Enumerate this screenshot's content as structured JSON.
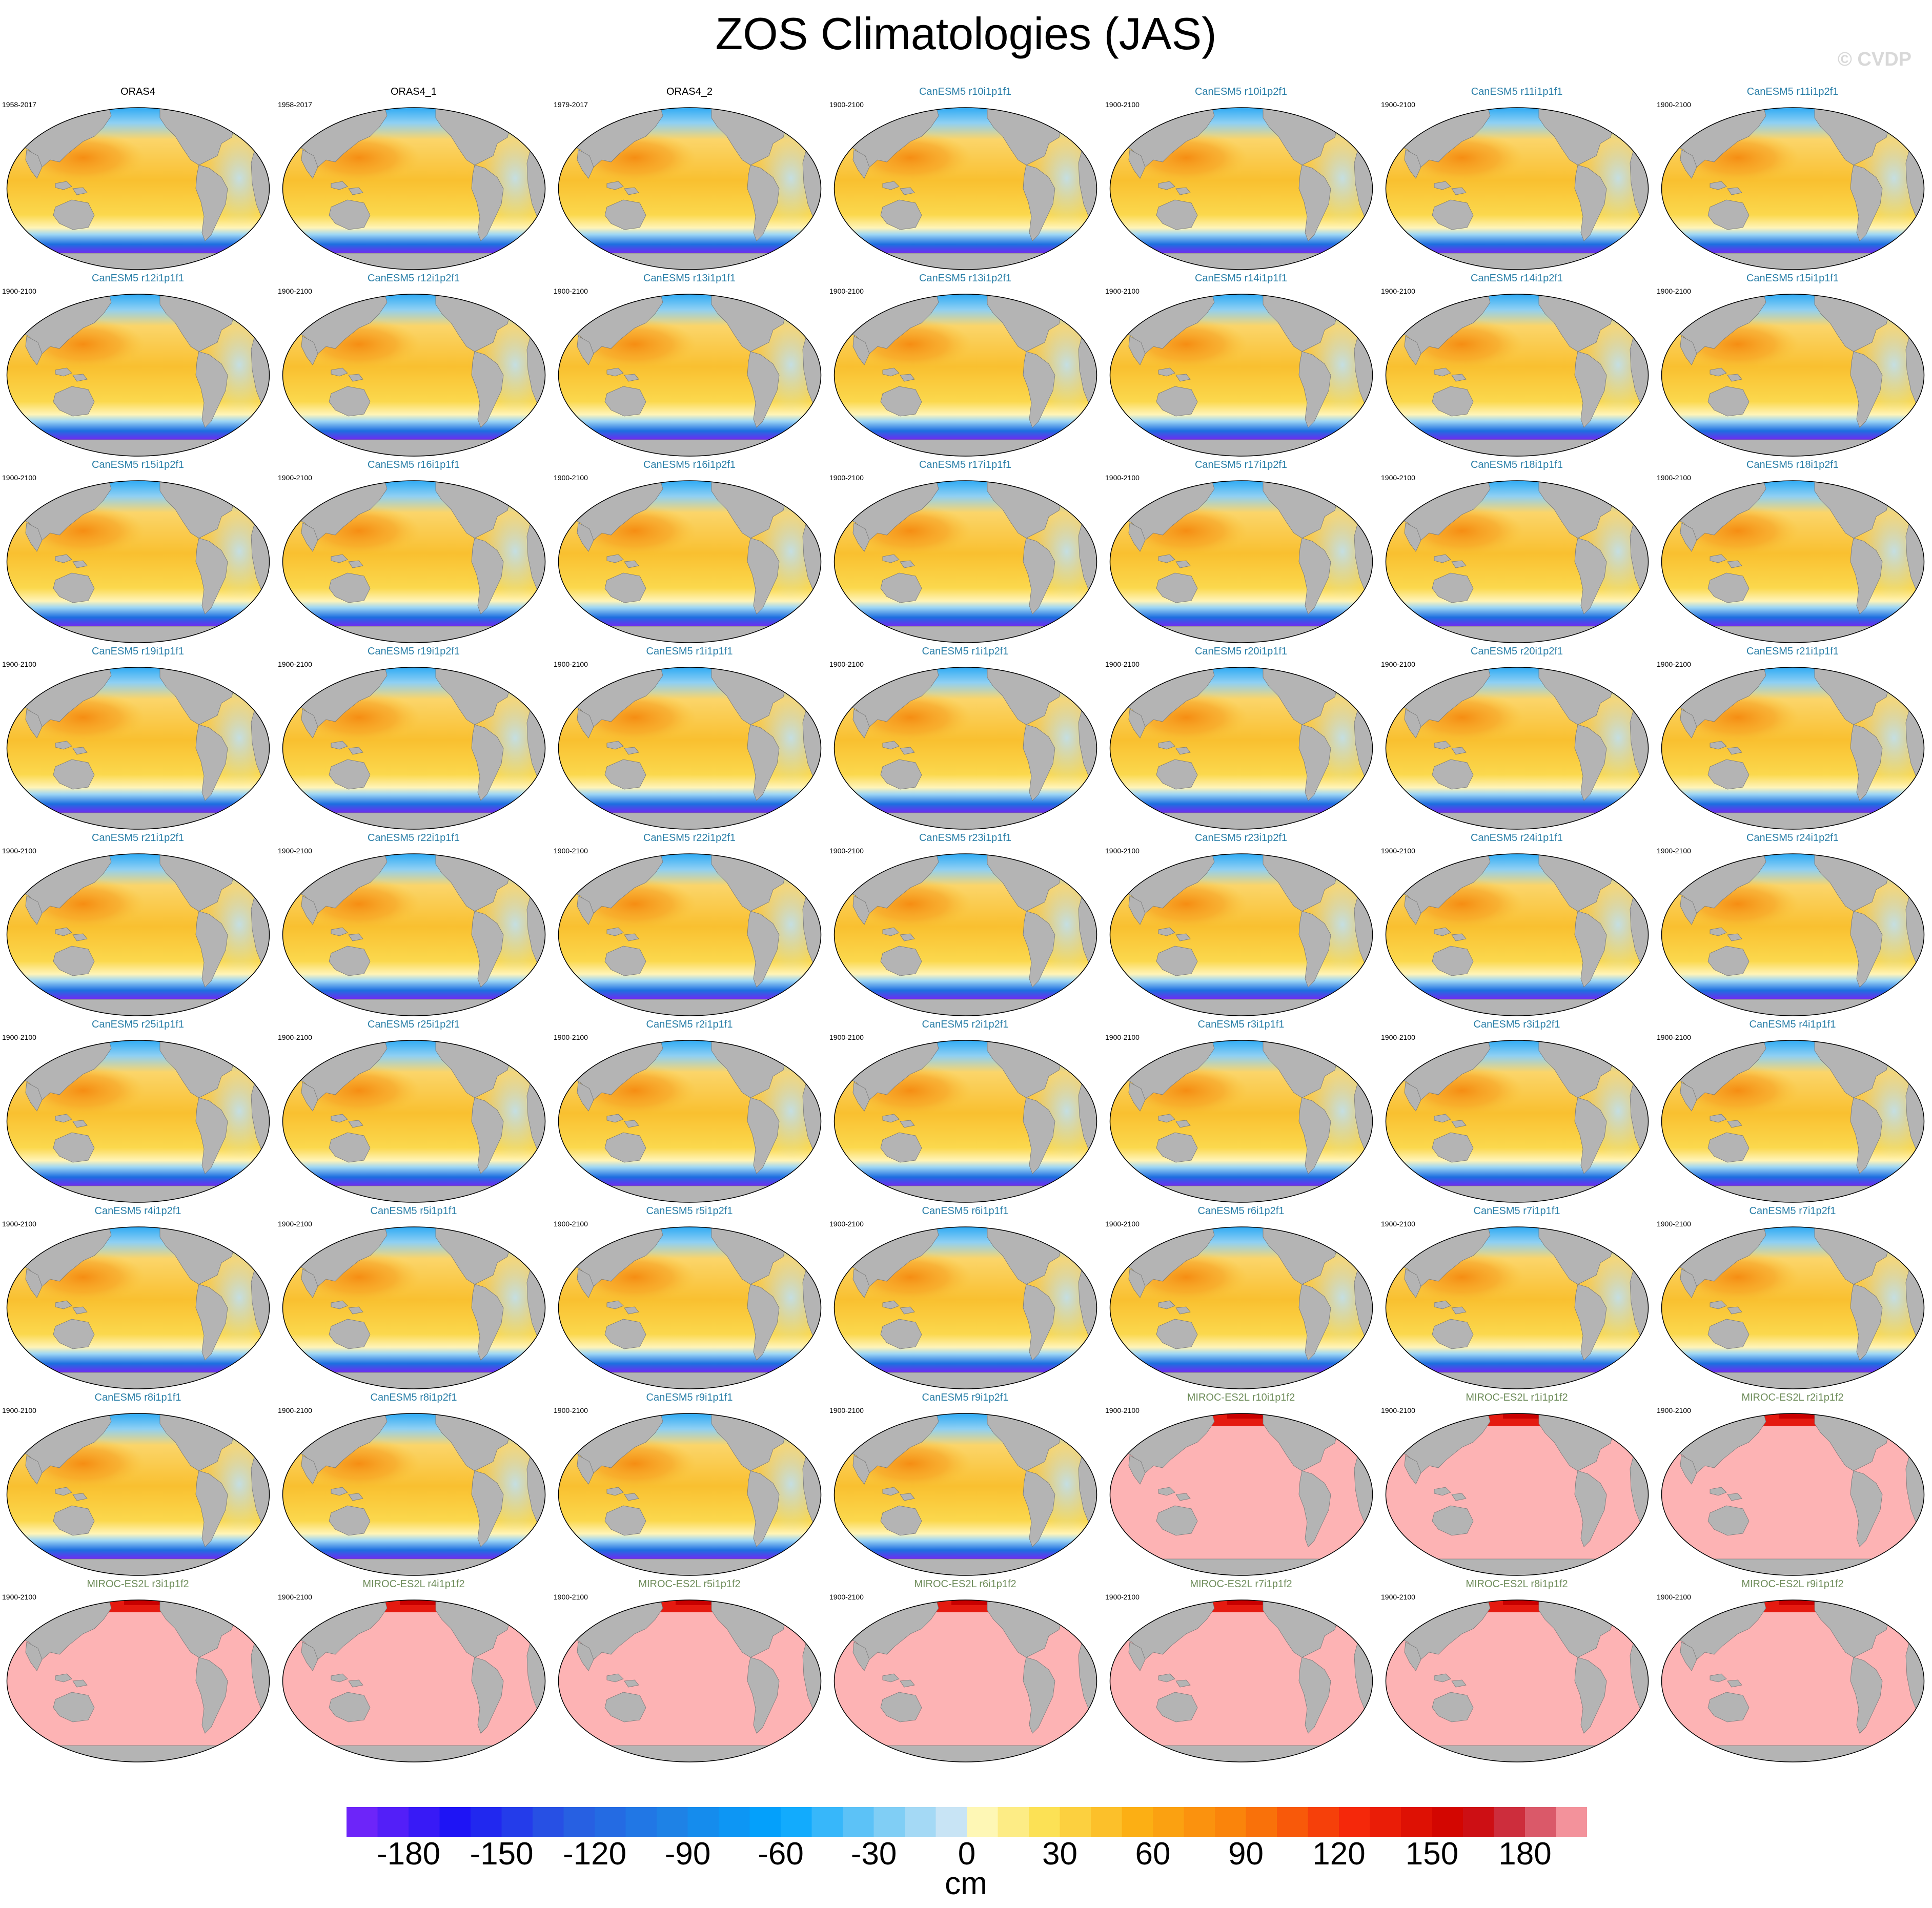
{
  "title": "ZOS Climatologies (JAS)",
  "copyright": "© CVDP",
  "chart_data": {
    "type": "heatmap",
    "title": "ZOS Climatologies (JAS)",
    "colorbar": {
      "units": "cm",
      "min": -200,
      "max": 200,
      "step": 10,
      "tick_labels": [
        "-180",
        "-150",
        "-120",
        "-90",
        "-60",
        "-30",
        "0",
        "30",
        "60",
        "90",
        "120",
        "150",
        "180"
      ],
      "tick_values": [
        -180,
        -150,
        -120,
        -90,
        -60,
        -30,
        0,
        30,
        60,
        90,
        120,
        150,
        180
      ]
    },
    "colors": {
      "land": "#b4b4b4",
      "canesm_title": "#2a7fa8",
      "miroc_title": "#6e8c5a",
      "obs_title": "#000000"
    },
    "panels": [
      {
        "title": "ORAS4",
        "years": "1958-2017",
        "kind": "obs"
      },
      {
        "title": "ORAS4_1",
        "years": "1958-2017",
        "kind": "obs"
      },
      {
        "title": "ORAS4_2",
        "years": "1979-2017",
        "kind": "obs"
      },
      {
        "title": "CanESM5 r10i1p1f1",
        "years": "1900-2100",
        "kind": "canesm"
      },
      {
        "title": "CanESM5 r10i1p2f1",
        "years": "1900-2100",
        "kind": "canesm"
      },
      {
        "title": "CanESM5 r11i1p1f1",
        "years": "1900-2100",
        "kind": "canesm"
      },
      {
        "title": "CanESM5 r11i1p2f1",
        "years": "1900-2100",
        "kind": "canesm"
      },
      {
        "title": "CanESM5 r12i1p1f1",
        "years": "1900-2100",
        "kind": "canesm"
      },
      {
        "title": "CanESM5 r12i1p2f1",
        "years": "1900-2100",
        "kind": "canesm"
      },
      {
        "title": "CanESM5 r13i1p1f1",
        "years": "1900-2100",
        "kind": "canesm"
      },
      {
        "title": "CanESM5 r13i1p2f1",
        "years": "1900-2100",
        "kind": "canesm"
      },
      {
        "title": "CanESM5 r14i1p1f1",
        "years": "1900-2100",
        "kind": "canesm"
      },
      {
        "title": "CanESM5 r14i1p2f1",
        "years": "1900-2100",
        "kind": "canesm"
      },
      {
        "title": "CanESM5 r15i1p1f1",
        "years": "1900-2100",
        "kind": "canesm"
      },
      {
        "title": "CanESM5 r15i1p2f1",
        "years": "1900-2100",
        "kind": "canesm"
      },
      {
        "title": "CanESM5 r16i1p1f1",
        "years": "1900-2100",
        "kind": "canesm"
      },
      {
        "title": "CanESM5 r16i1p2f1",
        "years": "1900-2100",
        "kind": "canesm"
      },
      {
        "title": "CanESM5 r17i1p1f1",
        "years": "1900-2100",
        "kind": "canesm"
      },
      {
        "title": "CanESM5 r17i1p2f1",
        "years": "1900-2100",
        "kind": "canesm"
      },
      {
        "title": "CanESM5 r18i1p1f1",
        "years": "1900-2100",
        "kind": "canesm"
      },
      {
        "title": "CanESM5 r18i1p2f1",
        "years": "1900-2100",
        "kind": "canesm"
      },
      {
        "title": "CanESM5 r19i1p1f1",
        "years": "1900-2100",
        "kind": "canesm"
      },
      {
        "title": "CanESM5 r19i1p2f1",
        "years": "1900-2100",
        "kind": "canesm"
      },
      {
        "title": "CanESM5 r1i1p1f1",
        "years": "1900-2100",
        "kind": "canesm"
      },
      {
        "title": "CanESM5 r1i1p2f1",
        "years": "1900-2100",
        "kind": "canesm"
      },
      {
        "title": "CanESM5 r20i1p1f1",
        "years": "1900-2100",
        "kind": "canesm"
      },
      {
        "title": "CanESM5 r20i1p2f1",
        "years": "1900-2100",
        "kind": "canesm"
      },
      {
        "title": "CanESM5 r21i1p1f1",
        "years": "1900-2100",
        "kind": "canesm"
      },
      {
        "title": "CanESM5 r21i1p2f1",
        "years": "1900-2100",
        "kind": "canesm"
      },
      {
        "title": "CanESM5 r22i1p1f1",
        "years": "1900-2100",
        "kind": "canesm"
      },
      {
        "title": "CanESM5 r22i1p2f1",
        "years": "1900-2100",
        "kind": "canesm"
      },
      {
        "title": "CanESM5 r23i1p1f1",
        "years": "1900-2100",
        "kind": "canesm"
      },
      {
        "title": "CanESM5 r23i1p2f1",
        "years": "1900-2100",
        "kind": "canesm"
      },
      {
        "title": "CanESM5 r24i1p1f1",
        "years": "1900-2100",
        "kind": "canesm"
      },
      {
        "title": "CanESM5 r24i1p2f1",
        "years": "1900-2100",
        "kind": "canesm"
      },
      {
        "title": "CanESM5 r25i1p1f1",
        "years": "1900-2100",
        "kind": "canesm"
      },
      {
        "title": "CanESM5 r25i1p2f1",
        "years": "1900-2100",
        "kind": "canesm"
      },
      {
        "title": "CanESM5 r2i1p1f1",
        "years": "1900-2100",
        "kind": "canesm"
      },
      {
        "title": "CanESM5 r2i1p2f1",
        "years": "1900-2100",
        "kind": "canesm"
      },
      {
        "title": "CanESM5 r3i1p1f1",
        "years": "1900-2100",
        "kind": "canesm"
      },
      {
        "title": "CanESM5 r3i1p2f1",
        "years": "1900-2100",
        "kind": "canesm"
      },
      {
        "title": "CanESM5 r4i1p1f1",
        "years": "1900-2100",
        "kind": "canesm"
      },
      {
        "title": "CanESM5 r4i1p2f1",
        "years": "1900-2100",
        "kind": "canesm"
      },
      {
        "title": "CanESM5 r5i1p1f1",
        "years": "1900-2100",
        "kind": "canesm"
      },
      {
        "title": "CanESM5 r5i1p2f1",
        "years": "1900-2100",
        "kind": "canesm"
      },
      {
        "title": "CanESM5 r6i1p1f1",
        "years": "1900-2100",
        "kind": "canesm"
      },
      {
        "title": "CanESM5 r6i1p2f1",
        "years": "1900-2100",
        "kind": "canesm"
      },
      {
        "title": "CanESM5 r7i1p1f1",
        "years": "1900-2100",
        "kind": "canesm"
      },
      {
        "title": "CanESM5 r7i1p2f1",
        "years": "1900-2100",
        "kind": "canesm"
      },
      {
        "title": "CanESM5 r8i1p1f1",
        "years": "1900-2100",
        "kind": "canesm"
      },
      {
        "title": "CanESM5 r8i1p2f1",
        "years": "1900-2100",
        "kind": "canesm"
      },
      {
        "title": "CanESM5 r9i1p1f1",
        "years": "1900-2100",
        "kind": "canesm"
      },
      {
        "title": "CanESM5 r9i1p2f1",
        "years": "1900-2100",
        "kind": "canesm"
      },
      {
        "title": "MIROC-ES2L r10i1p1f2",
        "years": "1900-2100",
        "kind": "miroc"
      },
      {
        "title": "MIROC-ES2L r1i1p1f2",
        "years": "1900-2100",
        "kind": "miroc"
      },
      {
        "title": "MIROC-ES2L r2i1p1f2",
        "years": "1900-2100",
        "kind": "miroc"
      },
      {
        "title": "MIROC-ES2L r3i1p1f2",
        "years": "1900-2100",
        "kind": "miroc"
      },
      {
        "title": "MIROC-ES2L r4i1p1f2",
        "years": "1900-2100",
        "kind": "miroc"
      },
      {
        "title": "MIROC-ES2L r5i1p1f2",
        "years": "1900-2100",
        "kind": "miroc"
      },
      {
        "title": "MIROC-ES2L r6i1p1f2",
        "years": "1900-2100",
        "kind": "miroc"
      },
      {
        "title": "MIROC-ES2L r7i1p1f2",
        "years": "1900-2100",
        "kind": "miroc"
      },
      {
        "title": "MIROC-ES2L r8i1p1f2",
        "years": "1900-2100",
        "kind": "miroc"
      },
      {
        "title": "MIROC-ES2L r9i1p1f2",
        "years": "1900-2100",
        "kind": "miroc"
      }
    ]
  }
}
